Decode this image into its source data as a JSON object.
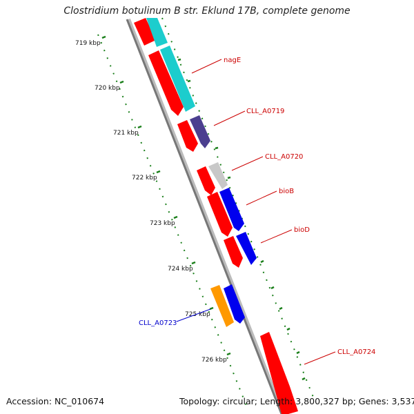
{
  "title": "Clostridium botulinum B str. Eklund 17B, complete genome",
  "footer": {
    "accession": "Accession: NC_010674",
    "topology": "Topology: circular; Length: 3,800,327 bp; Genes: 3,537"
  },
  "ticks": [
    "719 kbp",
    "720 kbp",
    "721 kbp",
    "722 kbp",
    "723 kbp",
    "724 kbp",
    "725 kbp",
    "726 kbp"
  ],
  "genes": [
    {
      "name": "nagE",
      "color": "#cc0000"
    },
    {
      "name": "CLL_A0719",
      "color": "#cc0000"
    },
    {
      "name": "CLL_A0720",
      "color": "#cc0000"
    },
    {
      "name": "bioB",
      "color": "#cc0000"
    },
    {
      "name": "bioD",
      "color": "#cc0000"
    },
    {
      "name": "CLL_A0723",
      "color": "#0000cc"
    },
    {
      "name": "CLL_A0724",
      "color": "#cc0000"
    }
  ],
  "colors": {
    "cds_red": "#ff0000",
    "teal": "#1ccdcd",
    "purple": "#4b3f8f",
    "grey": "#c8c8c8",
    "blue": "#0000ee",
    "orange": "#ff9900",
    "backbone": "#888888",
    "gc_skew_green": "#1a7f1a"
  }
}
